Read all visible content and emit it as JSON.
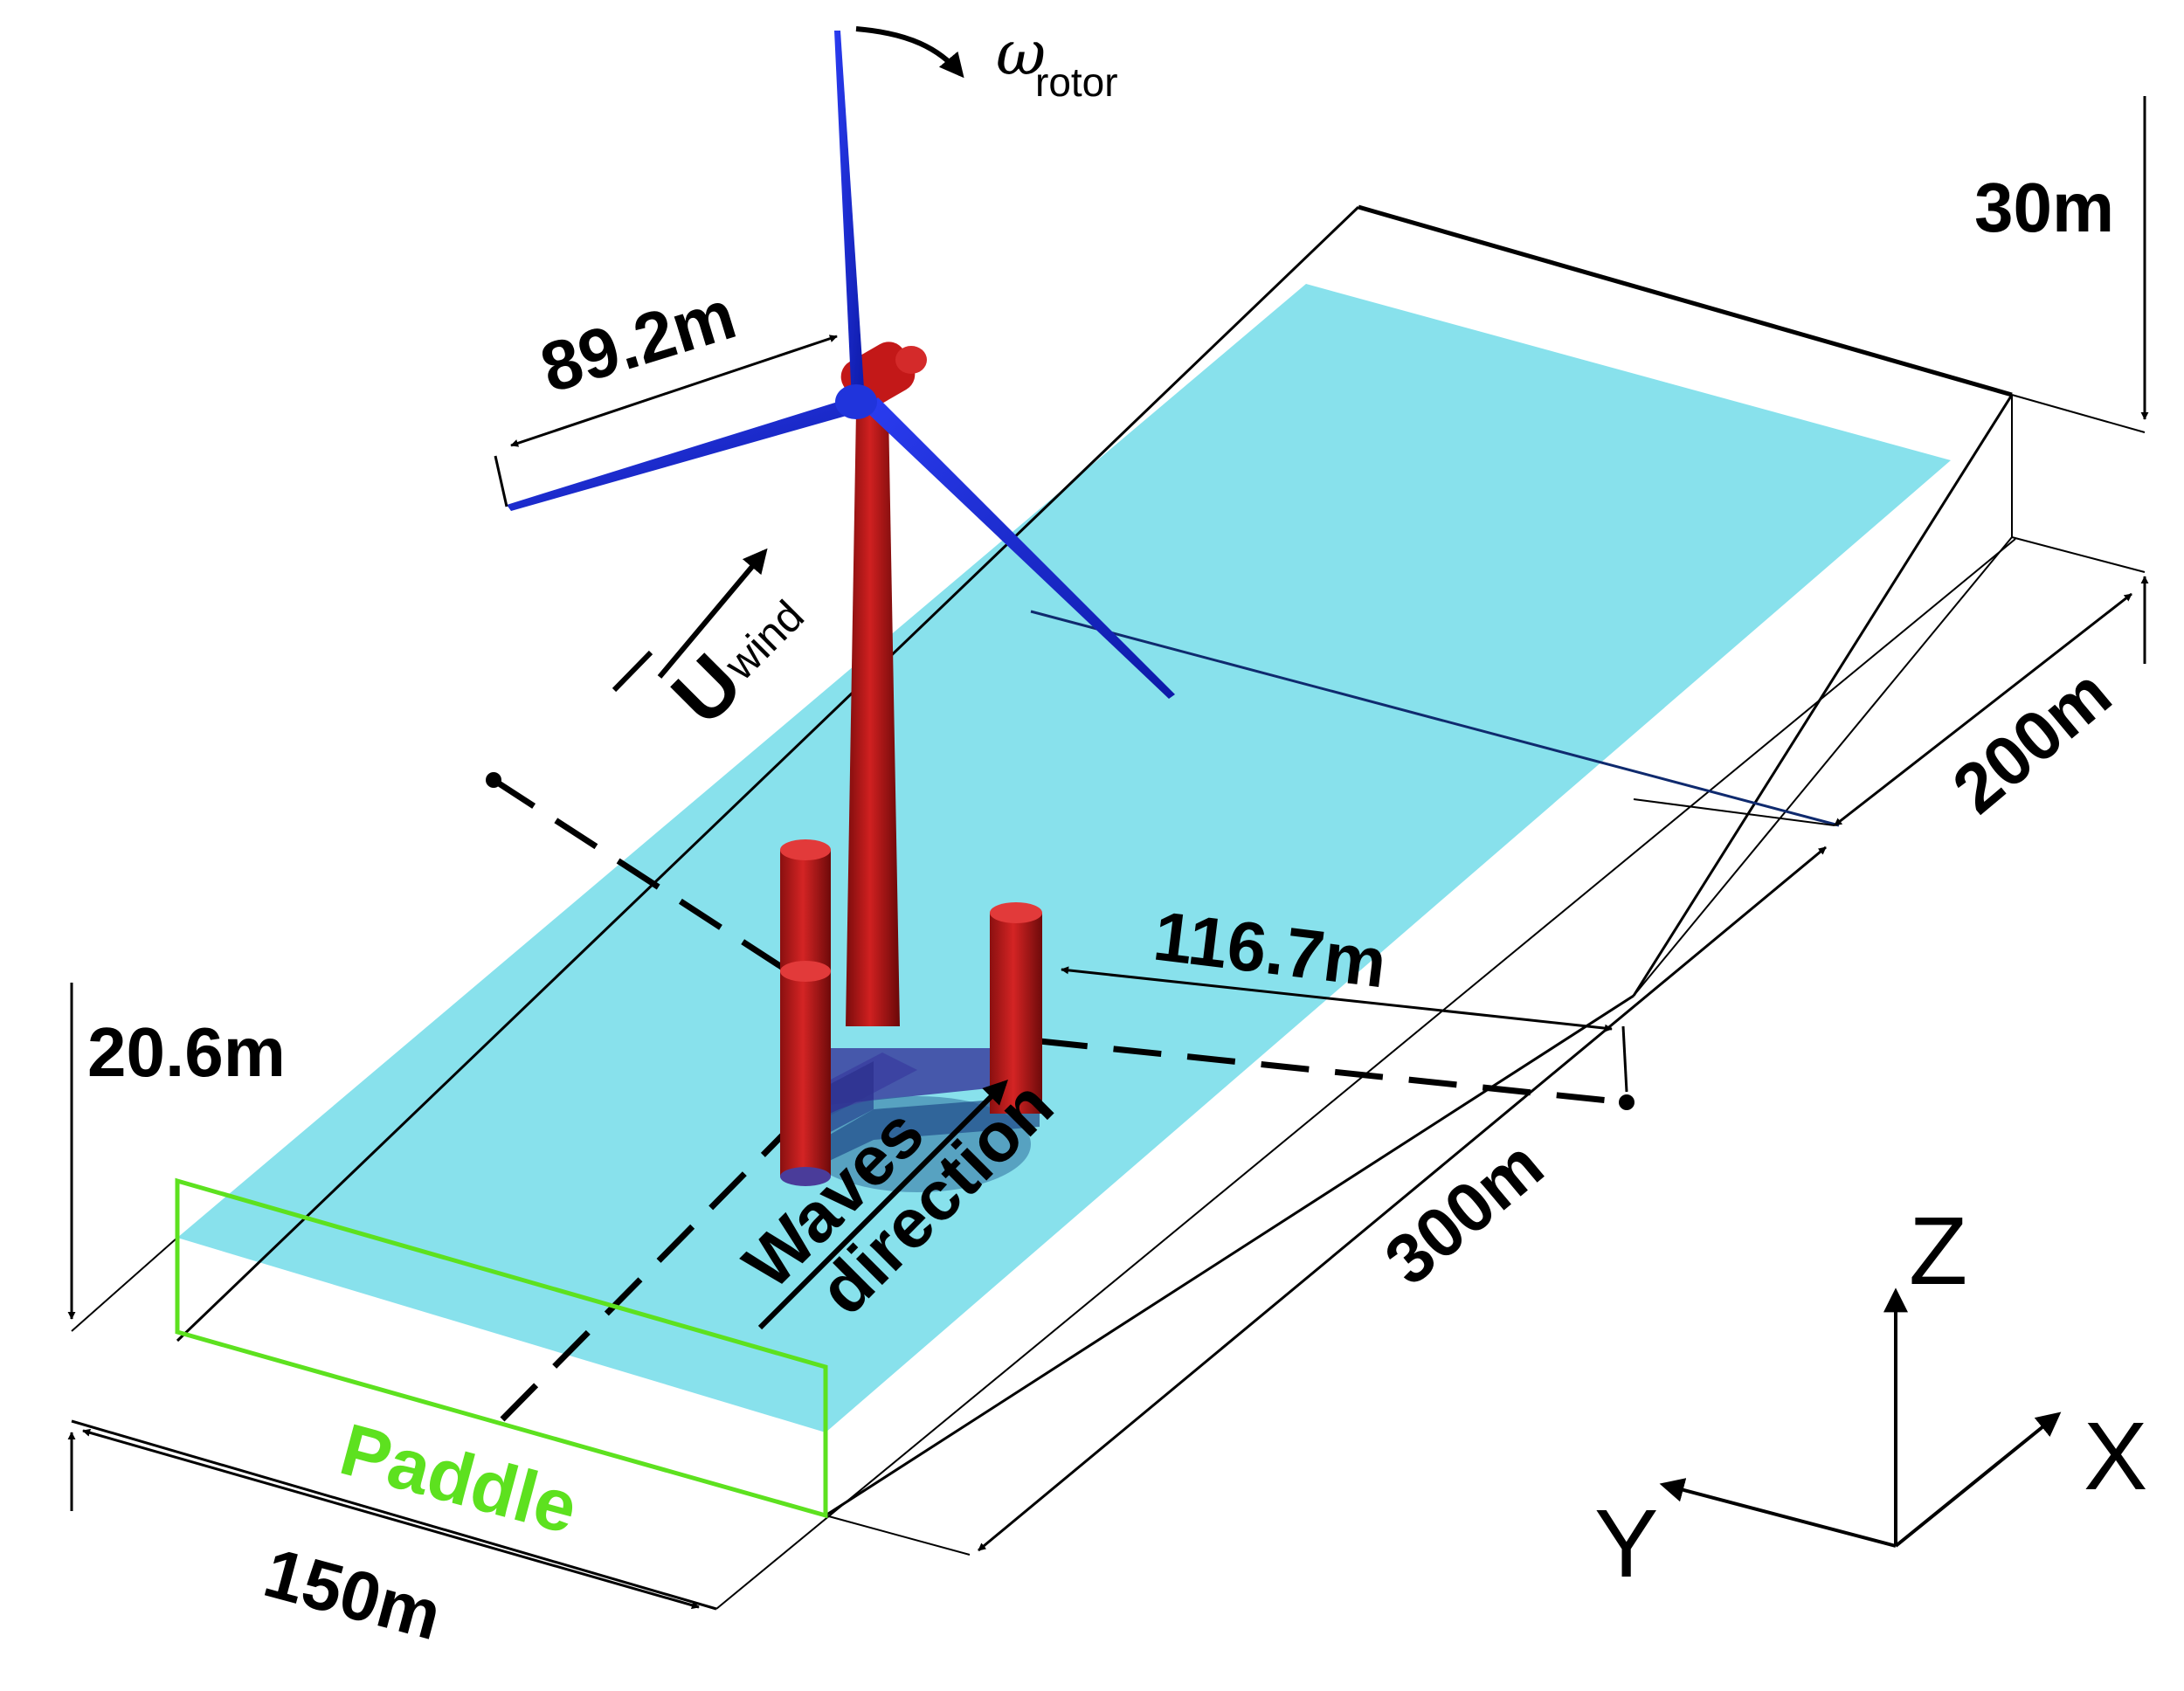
{
  "labels": {
    "omega_symbol": "ω",
    "omega_sub": "rotor",
    "u_symbol": "U",
    "u_sub": "wind",
    "waves_line1": "Waves",
    "waves_line2": "direction",
    "paddle": "Paddle"
  },
  "dimensions": {
    "blade": "89.2m",
    "height_right": "30m",
    "width_right": "200m",
    "spacing": "116.7m",
    "length": "300m",
    "depth_left": "20.6m",
    "width_front": "150m"
  },
  "axes": {
    "z": "Z",
    "x": "X",
    "y": "Y"
  },
  "colors": {
    "water": "#88e1ec",
    "turbine": "#bd1414",
    "rotor": "#1a2bd6",
    "paddle": "#5de11f",
    "platform_submerged": "#3b3fa0",
    "outline": "#000000"
  }
}
